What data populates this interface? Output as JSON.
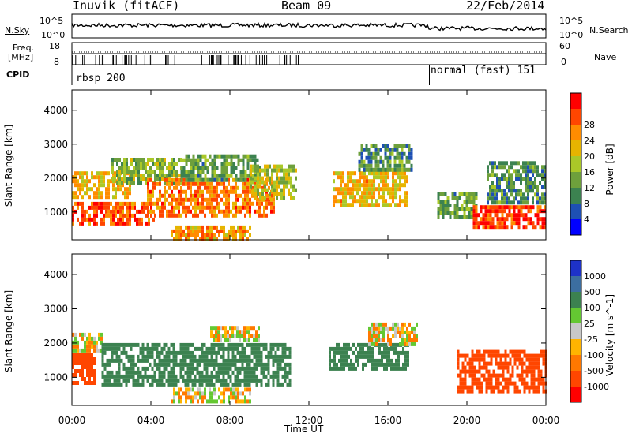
{
  "header": {
    "station": "Inuvik (fitACF)",
    "beam": "Beam 09",
    "date": "22/Feb/2014"
  },
  "strips": {
    "nsky": {
      "label": "N.Sky",
      "tick_top": "10^5",
      "tick_bottom": "10^0"
    },
    "nsearch": {
      "label": "N.Search",
      "tick_top": "10^5",
      "tick_bottom": "10^0"
    },
    "freq": {
      "label_line1": "Freq.",
      "label_line2": "[MHz]",
      "tick_top": "18",
      "tick_bottom": "8"
    },
    "nave": {
      "label": "Nave",
      "tick_top": "60",
      "tick_bottom": "0"
    },
    "cpid": {
      "label": "CPID",
      "modes": [
        "rbsp 200",
        "normal (fast) 151"
      ]
    }
  },
  "colors": {
    "power": [
      "#0000ff",
      "#1e50b4",
      "#3c8250",
      "#6ea03c",
      "#aac828",
      "#e6b400",
      "#ff8c00",
      "#ff4600",
      "#ff0000"
    ],
    "velocity": [
      "#ff0000",
      "#ff4600",
      "#ff7800",
      "#ffb400",
      "#c8c8c8",
      "#64c832",
      "#3c8250",
      "#3c6ea0",
      "#1e32c8"
    ]
  },
  "chart_data": [
    {
      "type": "heatmap",
      "title": "",
      "xlabel": "Time UT",
      "ylabel": "Slant Range [km]",
      "xlim": [
        "00:00",
        "24:00"
      ],
      "ylim": [
        180,
        4600
      ],
      "x_ticks": [
        "00:00",
        "04:00",
        "08:00",
        "12:00",
        "16:00",
        "20:00",
        "00:00"
      ],
      "y_ticks": [
        1000,
        2000,
        3000,
        4000
      ],
      "colorbar": {
        "label": "Power [dB]",
        "ticks": [
          4,
          8,
          12,
          16,
          20,
          24,
          28
        ]
      },
      "bands": [
        {
          "t0": 0.0,
          "t1": 4.2,
          "r0": 700,
          "r1": 1300,
          "value": 26
        },
        {
          "t0": 0.0,
          "t1": 3.0,
          "r0": 1500,
          "r1": 2200,
          "value": 20
        },
        {
          "t0": 2.0,
          "t1": 5.5,
          "r0": 1900,
          "r1": 2600,
          "value": 14
        },
        {
          "t0": 3.8,
          "t1": 10.2,
          "r0": 900,
          "r1": 2000,
          "value": 24
        },
        {
          "t0": 5.0,
          "t1": 9.0,
          "r0": 200,
          "r1": 600,
          "value": 22
        },
        {
          "t0": 5.5,
          "t1": 9.5,
          "r0": 2000,
          "r1": 2700,
          "value": 12
        },
        {
          "t0": 9.0,
          "t1": 11.3,
          "r0": 1400,
          "r1": 2400,
          "value": 16
        },
        {
          "t0": 13.2,
          "t1": 17.0,
          "r0": 1200,
          "r1": 2200,
          "value": 20
        },
        {
          "t0": 14.5,
          "t1": 17.2,
          "r0": 2300,
          "r1": 3000,
          "value": 10
        },
        {
          "t0": 18.5,
          "t1": 20.5,
          "r0": 900,
          "r1": 1600,
          "value": 12
        },
        {
          "t0": 20.3,
          "t1": 24.0,
          "r0": 600,
          "r1": 1200,
          "value": 28
        },
        {
          "t0": 21.0,
          "t1": 24.0,
          "r0": 1300,
          "r1": 2500,
          "value": 10
        }
      ]
    },
    {
      "type": "heatmap",
      "title": "",
      "xlabel": "Time UT",
      "ylabel": "Slant Range [km]",
      "xlim": [
        "00:00",
        "24:00"
      ],
      "ylim": [
        180,
        4600
      ],
      "x_ticks": [
        "00:00",
        "04:00",
        "08:00",
        "12:00",
        "16:00",
        "20:00",
        "00:00"
      ],
      "y_ticks": [
        1000,
        2000,
        3000,
        4000
      ],
      "colorbar": {
        "label": "Velocity [m s^-1]",
        "ticks": [
          -1000,
          -500,
          -100,
          -25,
          25,
          100,
          500,
          1000
        ]
      },
      "bands": [
        {
          "t0": 0.0,
          "t1": 1.5,
          "r0": 1800,
          "r1": 2300,
          "value": 0
        },
        {
          "t0": 0.0,
          "t1": 1.2,
          "r0": 800,
          "r1": 1700,
          "value": -300
        },
        {
          "t0": 1.5,
          "t1": 11.0,
          "r0": 800,
          "r1": 2000,
          "value": 300
        },
        {
          "t0": 5.0,
          "t1": 9.0,
          "r0": 300,
          "r1": 700,
          "value": 0
        },
        {
          "t0": 7.0,
          "t1": 9.5,
          "r0": 2100,
          "r1": 2500,
          "value": 0
        },
        {
          "t0": 13.0,
          "t1": 17.0,
          "r0": 1300,
          "r1": 2000,
          "value": 300
        },
        {
          "t0": 15.0,
          "t1": 17.5,
          "r0": 2000,
          "r1": 2600,
          "value": 0
        },
        {
          "t0": 19.5,
          "t1": 24.0,
          "r0": 600,
          "r1": 1800,
          "value": -300
        }
      ]
    }
  ]
}
